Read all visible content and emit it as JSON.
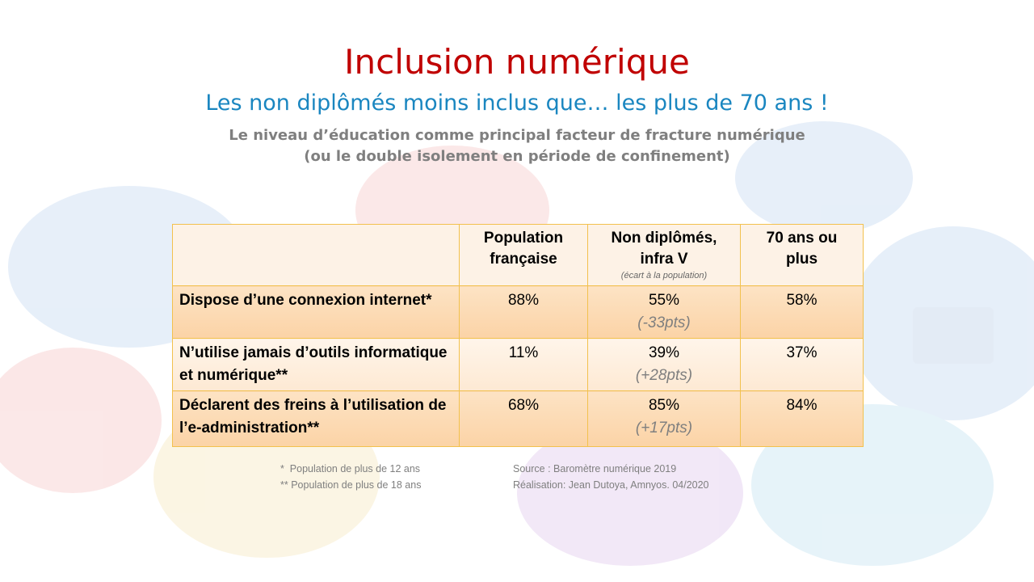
{
  "header": {
    "title": "Inclusion numérique",
    "subtitle": "Les non diplômés moins inclus que… les plus de 70 ans !",
    "description": [
      "Le niveau d’éducation comme principal facteur de fracture numérique",
      "(ou le double isolement en période de confinement)"
    ]
  },
  "table": {
    "columns": [
      {
        "label": "Population française"
      },
      {
        "label": "Non diplômés, infra V",
        "note": "(écart à la population)"
      },
      {
        "label": "70 ans ou plus"
      }
    ],
    "rows": [
      {
        "label": "Dispose d’une connexion internet*",
        "cells": [
          "88%",
          "55%",
          "58%"
        ],
        "gap": "(-33pts)"
      },
      {
        "label": "N’utilise jamais d’outils informatique et numérique**",
        "cells": [
          "11%",
          "39%",
          "37%"
        ],
        "gap": "(+28pts)"
      },
      {
        "label": "Déclarent des freins à l’utilisation de l’e-administration**",
        "cells": [
          "68%",
          "85%",
          "84%"
        ],
        "gap": "(+17pts)"
      }
    ]
  },
  "footnotes": [
    "*  Population de plus de 12 ans",
    "** Population de plus de 18 ans"
  ],
  "source": [
    "Source : Baromètre numérique 2019",
    "Réalisation: Jean Dutoya, Amnyos. 04/2020"
  ]
}
